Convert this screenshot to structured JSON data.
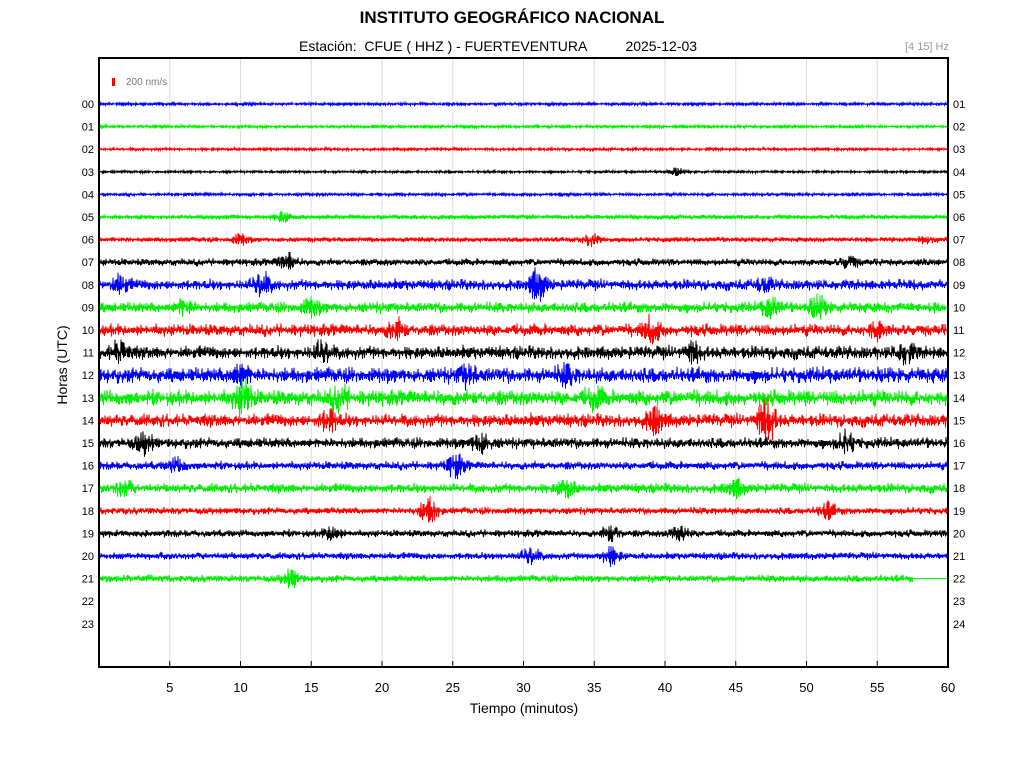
{
  "header": {
    "title": "INSTITUTO GEOGRÁFICO NACIONAL",
    "subtitle": "Estación:  CFUE ( HHZ ) - FUERTEVENTURA          2025-12-03",
    "band": "[4 15] Hz"
  },
  "chart_data": {
    "type": "line",
    "title": "INSTITUTO GEOGRÁFICO NACIONAL",
    "station": "CFUE ( HHZ ) - FUERTEVENTURA",
    "date": "2025-12-03",
    "filter_band": "[4 15] Hz",
    "scale_bar_label": "200 nm/s",
    "xlabel": "Tiempo (minutos)",
    "ylabel": "Horas (UTC)",
    "xlim": [
      0,
      60
    ],
    "x_ticks": [
      "5",
      "10",
      "15",
      "20",
      "25",
      "30",
      "35",
      "40",
      "45",
      "50",
      "55",
      "60"
    ],
    "y_ticks_left": [
      "00",
      "01",
      "02",
      "03",
      "04",
      "05",
      "06",
      "07",
      "08",
      "09",
      "10",
      "11",
      "12",
      "13",
      "14",
      "15",
      "16",
      "17",
      "18",
      "19",
      "20",
      "21",
      "22",
      "23"
    ],
    "y_ticks_right": [
      "01",
      "02",
      "03",
      "04",
      "05",
      "06",
      "07",
      "08",
      "09",
      "10",
      "11",
      "12",
      "13",
      "14",
      "15",
      "16",
      "17",
      "18",
      "19",
      "20",
      "21",
      "22",
      "23",
      "24"
    ],
    "grid": true,
    "series_colors": [
      "#0000ff",
      "#00ff00",
      "#ff0000",
      "#000000"
    ],
    "traces": [
      {
        "hour": "00",
        "color": "#0000ff",
        "noise": 1.2,
        "end_minute": 60,
        "events": []
      },
      {
        "hour": "01",
        "color": "#00ee00",
        "noise": 1.2,
        "end_minute": 60,
        "events": []
      },
      {
        "hour": "02",
        "color": "#ff0000",
        "noise": 1.1,
        "end_minute": 60,
        "events": []
      },
      {
        "hour": "03",
        "color": "#000000",
        "noise": 1.0,
        "end_minute": 60,
        "events": [
          [
            40.8,
            3.5
          ]
        ]
      },
      {
        "hour": "04",
        "color": "#0000ff",
        "noise": 1.2,
        "end_minute": 60,
        "events": []
      },
      {
        "hour": "05",
        "color": "#00ee00",
        "noise": 1.8,
        "end_minute": 60,
        "events": [
          [
            13,
            5
          ]
        ]
      },
      {
        "hour": "06",
        "color": "#ff0000",
        "noise": 2.0,
        "end_minute": 60,
        "events": [
          [
            10,
            5
          ],
          [
            34.8,
            6
          ],
          [
            58.5,
            4
          ]
        ]
      },
      {
        "hour": "07",
        "color": "#000000",
        "noise": 3.0,
        "end_minute": 60,
        "events": [
          [
            13.3,
            8
          ],
          [
            53,
            5
          ]
        ]
      },
      {
        "hour": "08",
        "color": "#0000ff",
        "noise": 4.5,
        "end_minute": 60,
        "events": [
          [
            1.5,
            7
          ],
          [
            11.5,
            11
          ],
          [
            31,
            14
          ],
          [
            47,
            5
          ]
        ]
      },
      {
        "hour": "09",
        "color": "#00ee00",
        "noise": 4.5,
        "end_minute": 60,
        "events": [
          [
            6,
            6
          ],
          [
            15,
            7
          ],
          [
            47.5,
            9
          ],
          [
            50.8,
            9
          ]
        ]
      },
      {
        "hour": "10",
        "color": "#ff0000",
        "noise": 5.0,
        "end_minute": 60,
        "events": [
          [
            21,
            8
          ],
          [
            39,
            11
          ],
          [
            55,
            6
          ]
        ]
      },
      {
        "hour": "11",
        "color": "#000000",
        "noise": 5.5,
        "end_minute": 60,
        "events": [
          [
            1.5,
            9
          ],
          [
            15.8,
            9
          ],
          [
            42,
            8
          ],
          [
            57,
            8
          ]
        ]
      },
      {
        "hour": "12",
        "color": "#0000ff",
        "noise": 6.5,
        "end_minute": 60,
        "events": [
          [
            10,
            9
          ],
          [
            26,
            7
          ],
          [
            33,
            7
          ]
        ]
      },
      {
        "hour": "13",
        "color": "#00ee00",
        "noise": 6.5,
        "end_minute": 60,
        "events": [
          [
            10.2,
            14
          ],
          [
            17,
            10
          ],
          [
            35,
            8
          ]
        ]
      },
      {
        "hour": "14",
        "color": "#ff0000",
        "noise": 5.5,
        "end_minute": 60,
        "events": [
          [
            16.3,
            10
          ],
          [
            39.3,
            11
          ],
          [
            47.2,
            22
          ]
        ]
      },
      {
        "hour": "15",
        "color": "#000000",
        "noise": 4.5,
        "end_minute": 60,
        "events": [
          [
            3.2,
            9
          ],
          [
            27,
            9
          ],
          [
            52.8,
            9
          ]
        ]
      },
      {
        "hour": "16",
        "color": "#0000ff",
        "noise": 3.5,
        "end_minute": 60,
        "events": [
          [
            5.5,
            6
          ],
          [
            25.2,
            10
          ]
        ]
      },
      {
        "hour": "17",
        "color": "#00ee00",
        "noise": 4.0,
        "end_minute": 60,
        "events": [
          [
            1.7,
            7
          ],
          [
            33,
            8
          ],
          [
            45,
            7
          ]
        ]
      },
      {
        "hour": "18",
        "color": "#ff0000",
        "noise": 3.0,
        "end_minute": 60,
        "events": [
          [
            23.3,
            12
          ],
          [
            51.5,
            7
          ]
        ]
      },
      {
        "hour": "19",
        "color": "#000000",
        "noise": 3.0,
        "end_minute": 60,
        "events": [
          [
            16.5,
            7
          ],
          [
            36.2,
            7
          ],
          [
            41,
            8
          ]
        ]
      },
      {
        "hour": "20",
        "color": "#0000ff",
        "noise": 3.0,
        "end_minute": 60,
        "events": [
          [
            30.5,
            8
          ],
          [
            36.2,
            8
          ]
        ]
      },
      {
        "hour": "21",
        "color": "#00ee00",
        "noise": 3.0,
        "end_minute": 57.5,
        "events": [
          [
            13.6,
            8
          ]
        ]
      }
    ]
  }
}
